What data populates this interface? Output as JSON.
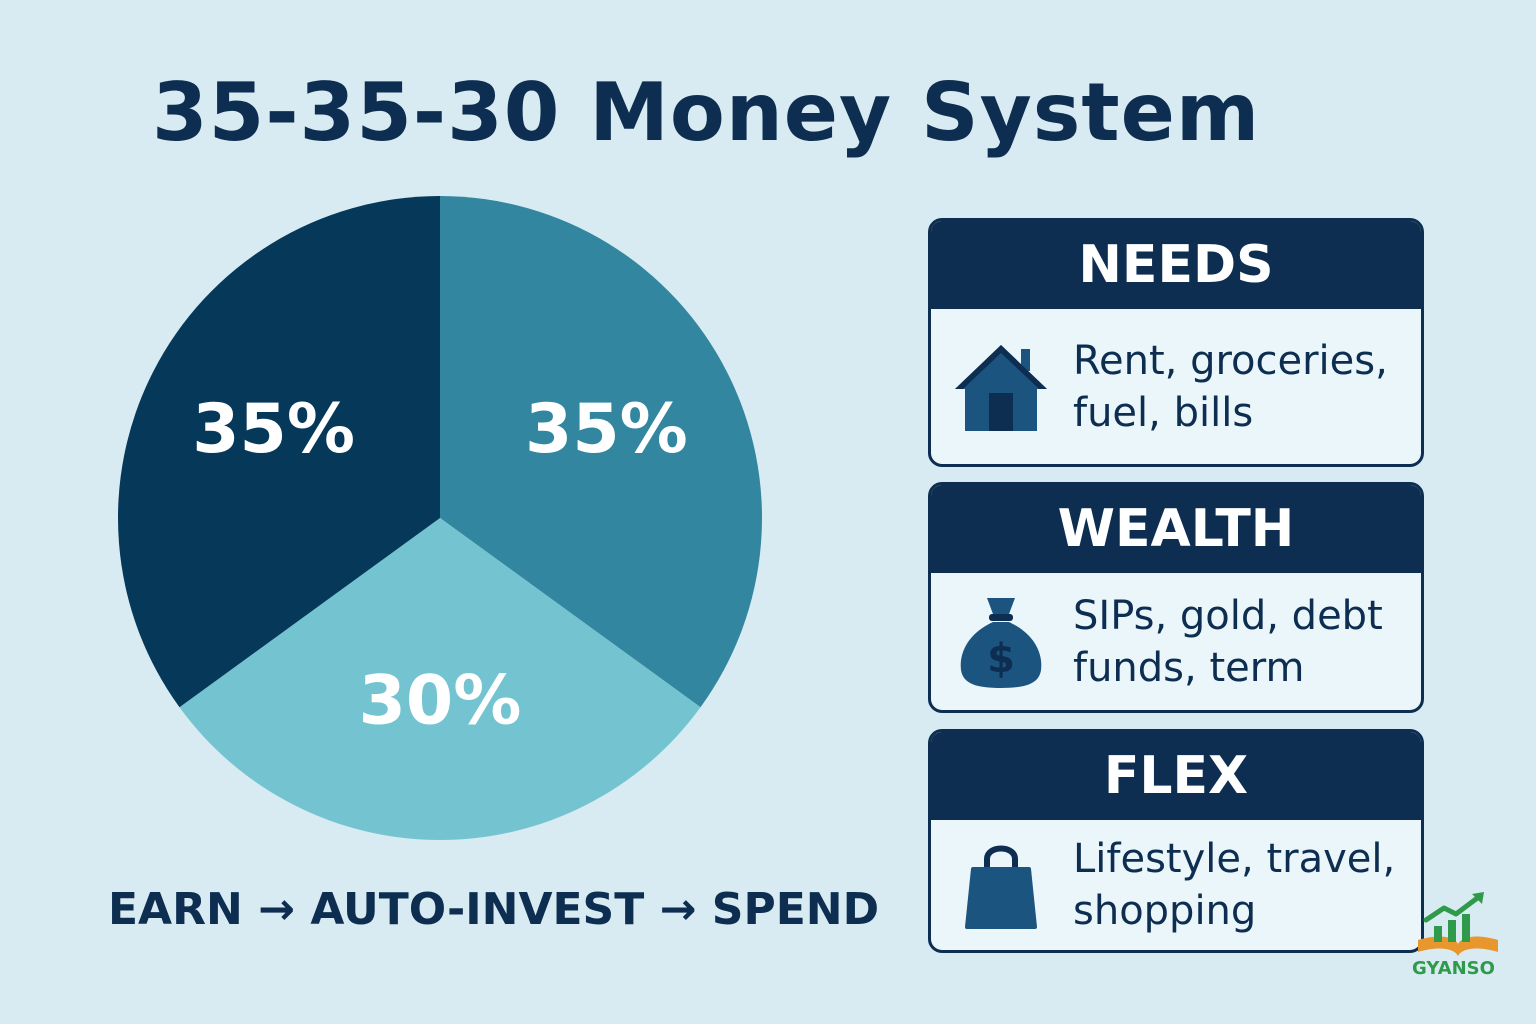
{
  "title": "35-35-30 Money System",
  "chart_data": {
    "type": "pie",
    "slices": [
      {
        "label": "35%",
        "value": 35,
        "color": "#33869f"
      },
      {
        "label": "30%",
        "value": 30,
        "color": "#73c4d0"
      },
      {
        "label": "35%",
        "value": 35,
        "color": "#06385a"
      }
    ]
  },
  "flow_text": "EARN → AUTO-INVEST → SPEND",
  "cards": {
    "needs": {
      "title": "NEEDS",
      "line1": "Rent, groceries,",
      "line2": "fuel, bills",
      "icon": "house-icon"
    },
    "wealth": {
      "title": "WEALTH",
      "line1": "SIPs, gold, debt",
      "line2": "funds, term",
      "icon": "money-bag-icon"
    },
    "flex": {
      "title": "FLEX",
      "line1": "Lifestyle, travel,",
      "line2": "shopping",
      "icon": "shopping-bag-icon"
    }
  },
  "logo": {
    "text": "GYANSO",
    "icon": "growth-chart-logo-icon"
  },
  "colors": {
    "navy": "#0d2e50",
    "background": "#d8ebf2",
    "icon": "#1c5480"
  }
}
